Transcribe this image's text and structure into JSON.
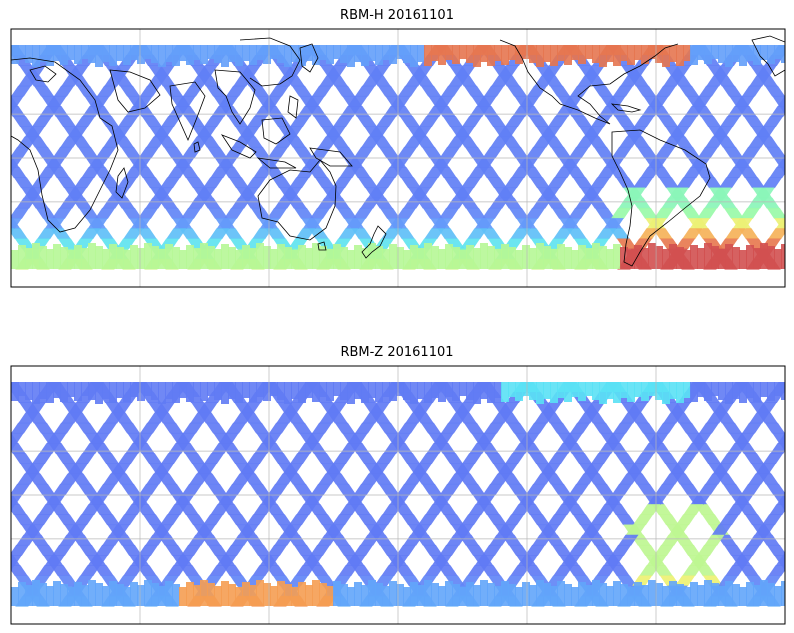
{
  "maps": [
    {
      "title": "RBM-H 20161101",
      "colormap": "jet",
      "description_colors": {
        "low": "#5a6cf0",
        "mid": "#55f0f0",
        "high": "#d85050"
      }
    },
    {
      "title": "RBM-Z 20161101",
      "colormap": "jet",
      "description_colors": {
        "low": "#5a6cf0",
        "mid": "#55f0f0",
        "high": "#e07040"
      }
    }
  ],
  "style": {
    "coastline": "#000000",
    "grid": "#bbbbbb",
    "frame": "#000000"
  }
}
